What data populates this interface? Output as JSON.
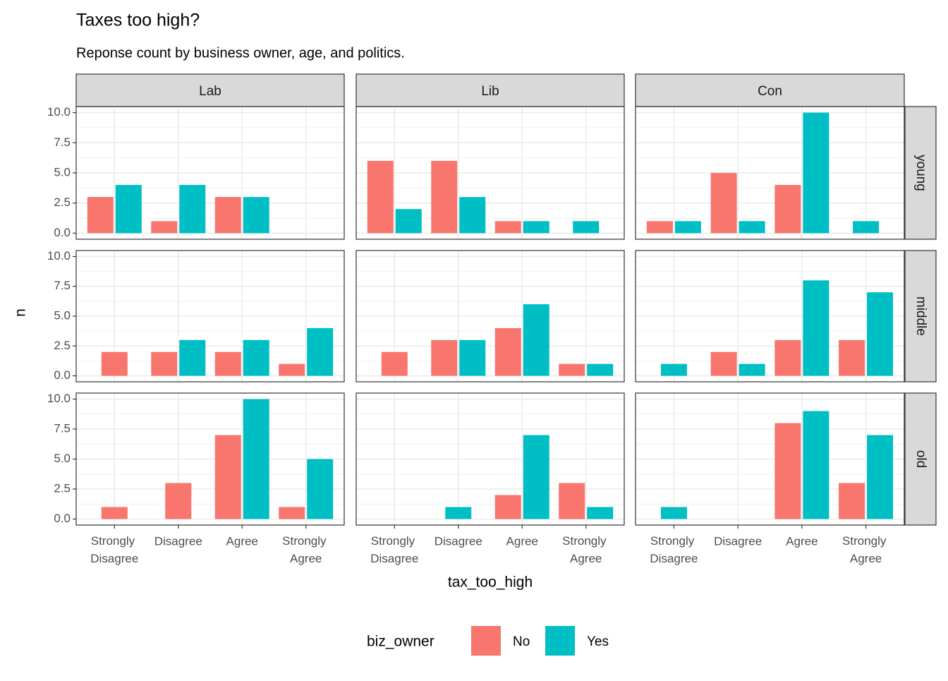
{
  "chart_data": {
    "type": "bar",
    "title": "Taxes too high?",
    "subtitle": "Reponse count by business owner, age, and politics.",
    "x_label": "tax_too_high",
    "y_label": "n",
    "legend_title": "biz_owner",
    "facet_cols": [
      "Lab",
      "Lib",
      "Con"
    ],
    "facet_rows": [
      "young",
      "middle",
      "old"
    ],
    "categories": [
      "Strongly Disagree",
      "Disagree",
      "Agree",
      "Strongly Agree"
    ],
    "series": [
      {
        "name": "No",
        "color": "#F8766D"
      },
      {
        "name": "Yes",
        "color": "#00BFC4"
      }
    ],
    "values": [
      [
        [
          [
            3,
            1,
            3,
            null
          ],
          [
            4,
            4,
            3,
            null
          ]
        ],
        [
          [
            6,
            6,
            1,
            null
          ],
          [
            2,
            3,
            1,
            1
          ]
        ],
        [
          [
            1,
            5,
            4,
            null
          ],
          [
            1,
            1,
            10,
            1
          ]
        ]
      ],
      [
        [
          [
            2,
            2,
            2,
            1
          ],
          [
            null,
            3,
            3,
            4
          ]
        ],
        [
          [
            2,
            3,
            4,
            1
          ],
          [
            null,
            3,
            6,
            1
          ]
        ],
        [
          [
            null,
            2,
            3,
            3
          ],
          [
            1,
            1,
            8,
            7
          ]
        ]
      ],
      [
        [
          [
            1,
            3,
            7,
            1
          ],
          [
            null,
            null,
            10,
            5
          ]
        ],
        [
          [
            null,
            null,
            2,
            3
          ],
          [
            null,
            1,
            7,
            1
          ]
        ],
        [
          [
            null,
            null,
            8,
            3
          ],
          [
            1,
            null,
            9,
            7
          ]
        ]
      ]
    ],
    "ylim": [
      -0.5,
      10.5
    ],
    "yticks": [
      {
        "value": 0,
        "label": "0.0"
      },
      2.5,
      {
        "value": 5,
        "label": "5.0"
      },
      7.5,
      {
        "value": 10,
        "label": "10.0"
      }
    ],
    "grid": true,
    "legend_position": "bottom"
  }
}
